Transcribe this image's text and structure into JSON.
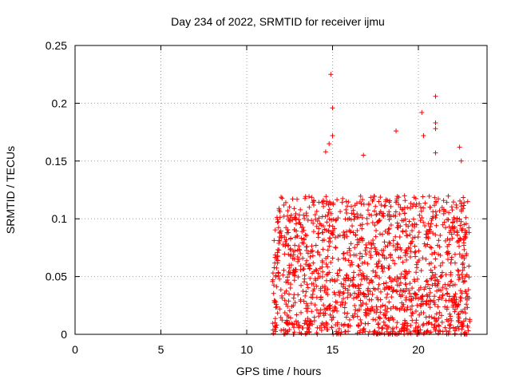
{
  "chart_data": {
    "type": "scatter",
    "title": "Day 234 of 2022, SRMTID for receiver ijmu",
    "xlabel": "GPS time / hours",
    "ylabel": "SRMTID / TECUs",
    "xlim": [
      0,
      24
    ],
    "ylim": [
      0,
      0.25
    ],
    "x_ticks": [
      0,
      5,
      10,
      15,
      20
    ],
    "x_tick_labels": [
      "0",
      "5",
      "10",
      "15",
      "20"
    ],
    "y_ticks": [
      0,
      0.05,
      0.1,
      0.15,
      0.2,
      0.25
    ],
    "y_tick_labels": [
      "0",
      "0.05",
      "0.1",
      "0.15",
      "0.2",
      "0.25"
    ],
    "grid": true,
    "marker": "+",
    "color": "#ff0000",
    "series": [
      {
        "x_start": 11.5,
        "x_end": 23.0,
        "point_count": 1500,
        "y_range": [
          0,
          0.225
        ],
        "typical_range": [
          0,
          0.12
        ],
        "outliers": [
          {
            "x": 14.9,
            "y": 0.225
          },
          {
            "x": 21.0,
            "y": 0.206
          },
          {
            "x": 15.0,
            "y": 0.196
          },
          {
            "x": 20.2,
            "y": 0.192
          },
          {
            "x": 21.0,
            "y": 0.183
          },
          {
            "x": 21.0,
            "y": 0.178
          },
          {
            "x": 18.7,
            "y": 0.176
          },
          {
            "x": 15.0,
            "y": 0.172
          },
          {
            "x": 20.3,
            "y": 0.172
          },
          {
            "x": 14.8,
            "y": 0.165
          },
          {
            "x": 22.4,
            "y": 0.162
          },
          {
            "x": 14.6,
            "y": 0.158
          },
          {
            "x": 21.0,
            "y": 0.157
          },
          {
            "x": 16.8,
            "y": 0.155
          },
          {
            "x": 22.5,
            "y": 0.15
          }
        ]
      }
    ]
  }
}
